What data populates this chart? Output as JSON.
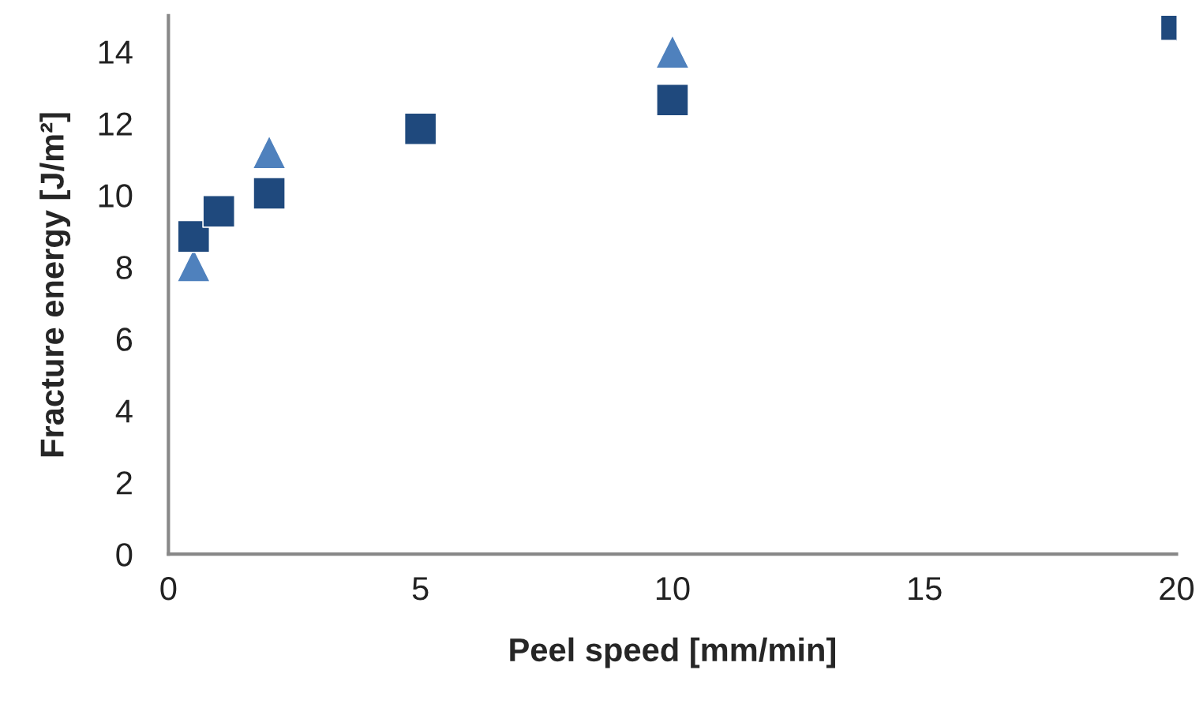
{
  "chart_data": {
    "type": "scatter",
    "xlabel": "Peel speed [mm/min]",
    "ylabel": "Fracture energy [J/m²]",
    "xlim": [
      0,
      20
    ],
    "xticks": [
      0,
      5,
      10,
      15,
      20
    ],
    "ylim": [
      0,
      15
    ],
    "yticks": [
      0,
      2,
      4,
      6,
      8,
      10,
      12,
      14
    ],
    "grid": false,
    "legend": false,
    "series": [
      {
        "color": "#4f81bd",
        "marker": "triangle",
        "x": [
          0.5,
          2,
          10
        ],
        "values": [
          8.05,
          11.2,
          14.0
        ]
      },
      {
        "color": "#1f497d",
        "marker": "square",
        "x": [
          0.5,
          1,
          2,
          5,
          10,
          20
        ],
        "values": [
          8.85,
          9.55,
          10.05,
          11.85,
          12.65,
          14.75
        ]
      }
    ]
  }
}
